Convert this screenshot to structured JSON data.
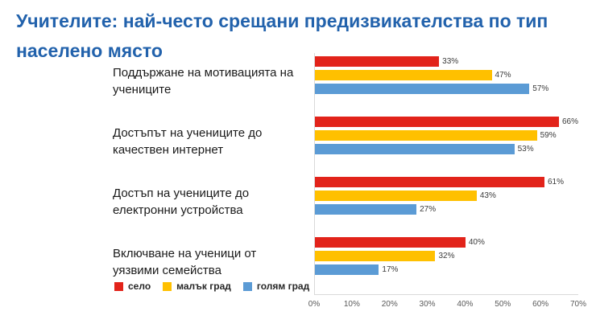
{
  "chart_data": {
    "type": "bar",
    "orientation": "horizontal",
    "title": "Учителите: най-често срещани предизвикателства по тип населено място",
    "title_color": "#2262ac",
    "categories": [
      "Поддържане на мотивацията на учениците",
      "Достъпът на учениците до качествен интернет",
      "Достъп на учениците до електронни устройства",
      "Включване на ученици от уязвими семейства"
    ],
    "series": [
      {
        "name": "село",
        "color": "#e2231a",
        "values": [
          33,
          66,
          61,
          40
        ]
      },
      {
        "name": "малък град",
        "color": "#ffc000",
        "values": [
          47,
          59,
          43,
          32
        ]
      },
      {
        "name": "голям град",
        "color": "#5b9bd5",
        "values": [
          57,
          53,
          27,
          17
        ]
      }
    ],
    "xlim": [
      0,
      70
    ],
    "x_ticks": [
      "0%",
      "10%",
      "20%",
      "30%",
      "40%",
      "50%",
      "60%",
      "70%"
    ],
    "data_label_suffix": "%",
    "grid": false,
    "legend_position": "bottom-left"
  }
}
